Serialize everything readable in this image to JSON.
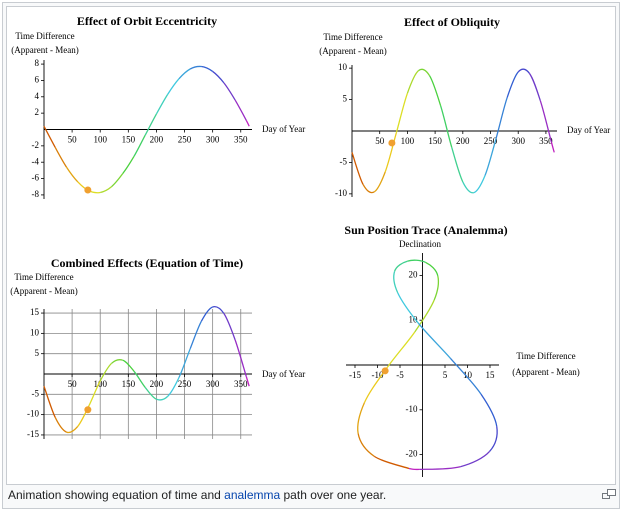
{
  "caption": {
    "before": "Animation showing equation of time and ",
    "link": "analemma",
    "after": " path over one year."
  },
  "chart_data": [
    {
      "type": "line",
      "title": "Effect of Orbit Eccentricity",
      "y_label": [
        "Time Difference",
        "(Apparent - Mean)"
      ],
      "x_label": [
        "Day of Year"
      ],
      "x": [
        0,
        20,
        40,
        60,
        80,
        100,
        120,
        140,
        160,
        180,
        200,
        220,
        240,
        260,
        280,
        300,
        320,
        340,
        360,
        365
      ],
      "values": [
        0.4,
        -2.2,
        -4.6,
        -6.4,
        -7.5,
        -7.7,
        -7.0,
        -5.4,
        -3.3,
        -0.7,
        1.9,
        4.3,
        6.2,
        7.4,
        7.7,
        7.1,
        5.7,
        3.6,
        1.1,
        0.4
      ],
      "xlim": [
        0,
        370
      ],
      "ylim": [
        -8.5,
        8.5
      ],
      "xticks": [
        50,
        100,
        150,
        200,
        250,
        300,
        350
      ],
      "yticks": [
        -8,
        -6,
        -4,
        -2,
        2,
        4,
        6,
        8
      ],
      "grid": false,
      "colors": [
        "#d05a00",
        "#f0e020",
        "#40d040",
        "#40d0e0",
        "#3050d0",
        "#c020c0"
      ],
      "marker": {
        "x": 78,
        "y": -7.4,
        "color": "#f0a030"
      }
    },
    {
      "type": "line",
      "title": "Effect of Obliquity",
      "y_label": [
        "Time Difference",
        "(Apparent - Mean)"
      ],
      "x_label": [
        "Day of Year"
      ],
      "x": [
        0,
        20,
        40,
        60,
        80,
        100,
        120,
        140,
        160,
        180,
        200,
        220,
        240,
        260,
        280,
        300,
        320,
        340,
        360,
        365
      ],
      "values": [
        -3.4,
        -8.5,
        -9.7,
        -6.5,
        -0.3,
        6.0,
        9.6,
        8.8,
        4.0,
        -2.6,
        -8.1,
        -9.8,
        -7.1,
        -1.2,
        5.3,
        9.4,
        9.2,
        4.8,
        -1.8,
        -3.4
      ],
      "xlim": [
        0,
        370
      ],
      "ylim": [
        -10.5,
        10.5
      ],
      "xticks": [
        50,
        100,
        150,
        200,
        250,
        300,
        350
      ],
      "yticks": [
        -10,
        -5,
        5,
        10
      ],
      "grid": false,
      "colors": [
        "#d05a00",
        "#f0e020",
        "#40d040",
        "#40d0e0",
        "#3050d0",
        "#c020c0"
      ],
      "marker": {
        "x": 72,
        "y": -1.9,
        "color": "#f0a030"
      }
    },
    {
      "type": "line",
      "title": "Combined Effects (Equation of Time)",
      "y_label": [
        "Time Difference",
        "(Apparent - Mean)"
      ],
      "x_label": [
        "Day of Year"
      ],
      "x": [
        0,
        20,
        40,
        60,
        80,
        100,
        120,
        140,
        160,
        180,
        200,
        220,
        240,
        260,
        280,
        300,
        320,
        340,
        360,
        365
      ],
      "values": [
        -3.0,
        -10.7,
        -14.3,
        -12.9,
        -7.8,
        -1.7,
        2.6,
        3.4,
        0.7,
        -3.3,
        -6.2,
        -5.5,
        -0.9,
        6.2,
        13.0,
        16.5,
        14.9,
        8.4,
        -0.7,
        -3.0
      ],
      "xlim": [
        0,
        370
      ],
      "ylim": [
        -16,
        16
      ],
      "xticks": [
        50,
        100,
        150,
        200,
        250,
        300,
        350
      ],
      "yticks": [
        -15,
        -10,
        -5,
        5,
        10,
        15
      ],
      "grid": true,
      "colors": [
        "#d05a00",
        "#f0e020",
        "#40d040",
        "#40d0e0",
        "#3050d0",
        "#c020c0"
      ],
      "marker": {
        "x": 78,
        "y": -8.8,
        "color": "#f0a030"
      }
    },
    {
      "type": "line",
      "title": "Sun Position Trace (Analemma)",
      "y_label": [
        "Declination"
      ],
      "x_label": [
        "Time Difference",
        "(Apparent - Mean)"
      ],
      "x": [
        -3.0,
        -10.7,
        -14.3,
        -12.9,
        -7.8,
        -1.7,
        2.6,
        3.4,
        0.7,
        -3.3,
        -6.2,
        -5.5,
        -0.9,
        6.2,
        13.0,
        16.5,
        14.9,
        8.4,
        -0.7,
        -3.0
      ],
      "values": [
        -23.1,
        -20.4,
        -15.3,
        -8.4,
        -0.5,
        7.4,
        14.5,
        19.9,
        22.9,
        23.2,
        20.9,
        16.1,
        9.3,
        1.5,
        -6.5,
        -13.7,
        -19.3,
        -22.7,
        -23.3,
        -23.1
      ],
      "xlim": [
        -17,
        17
      ],
      "ylim": [
        -25,
        25
      ],
      "xticks": [
        -15,
        -10,
        -5,
        5,
        10,
        15
      ],
      "yticks": [
        -20,
        -10,
        10,
        20
      ],
      "grid": false,
      "colors": [
        "#d05a00",
        "#f0e020",
        "#40d040",
        "#40d0e0",
        "#3050d0",
        "#c020c0"
      ],
      "marker": {
        "x": -8.3,
        "y": -1.3,
        "color": "#f0a030"
      }
    }
  ]
}
